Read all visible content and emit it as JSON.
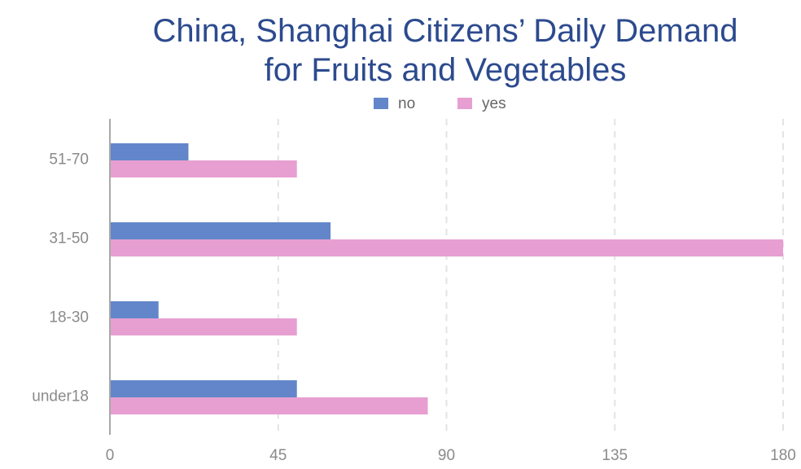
{
  "chart_data": {
    "type": "bar",
    "orientation": "horizontal",
    "title_lines": [
      "China, Shanghai Citizens’ Daily Demand",
      "for Fruits and Vegetables"
    ],
    "categories": [
      "51-70",
      "31-50",
      "18-30",
      "under18"
    ],
    "series": [
      {
        "name": "no",
        "color": "#6286c9",
        "values": [
          21,
          59,
          13,
          50
        ]
      },
      {
        "name": "yes",
        "color": "#e79fd2",
        "values": [
          50,
          180,
          50,
          85
        ]
      }
    ],
    "x_ticks": [
      "0",
      "45",
      "90",
      "135",
      "180"
    ],
    "xlim": [
      0,
      180
    ],
    "grid": "vertical dashed",
    "legend_position": "top-center"
  }
}
